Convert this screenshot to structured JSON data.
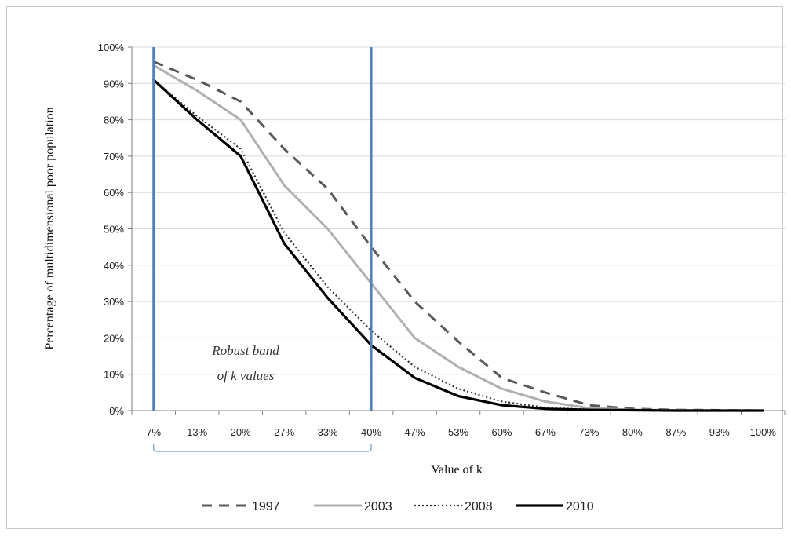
{
  "chart_data": {
    "type": "line",
    "xlabel": "Value of k",
    "ylabel": "Percentage of multidimensional poor population",
    "categories": [
      "7%",
      "13%",
      "20%",
      "27%",
      "33%",
      "40%",
      "47%",
      "53%",
      "60%",
      "67%",
      "73%",
      "80%",
      "87%",
      "93%",
      "100%"
    ],
    "y_ticks": [
      "0%",
      "10%",
      "20%",
      "30%",
      "40%",
      "50%",
      "60%",
      "70%",
      "80%",
      "90%",
      "100%"
    ],
    "ylim": [
      0,
      100
    ],
    "grid": "horizontal",
    "legend_position": "bottom",
    "series": [
      {
        "name": "1997",
        "style": "dashed",
        "color": "#595959",
        "values": [
          96,
          91,
          85,
          72,
          61,
          45,
          30,
          19,
          9,
          5,
          1.5,
          0.5,
          0.2,
          0.1,
          0
        ]
      },
      {
        "name": "2003",
        "style": "solid",
        "color": "#b0b0b0",
        "values": [
          95,
          88,
          80,
          62,
          50,
          35,
          20,
          12,
          6,
          2.5,
          0.7,
          0.2,
          0.1,
          0,
          0
        ]
      },
      {
        "name": "2008",
        "style": "dotted",
        "color": "#333333",
        "values": [
          91,
          81,
          72,
          49,
          34,
          22,
          12,
          6,
          2.5,
          0.8,
          0.3,
          0.1,
          0,
          0,
          0
        ]
      },
      {
        "name": "2010",
        "style": "solid-thick",
        "color": "#000000",
        "values": [
          91,
          80,
          70,
          46,
          31,
          18,
          9,
          4,
          1.5,
          0.5,
          0.2,
          0.1,
          0,
          0,
          0
        ]
      }
    ],
    "band": {
      "from": "7%",
      "to": "40%",
      "color": "#4f81bd"
    },
    "annotation": {
      "line1": "Robust band",
      "line2": "of k values"
    }
  }
}
